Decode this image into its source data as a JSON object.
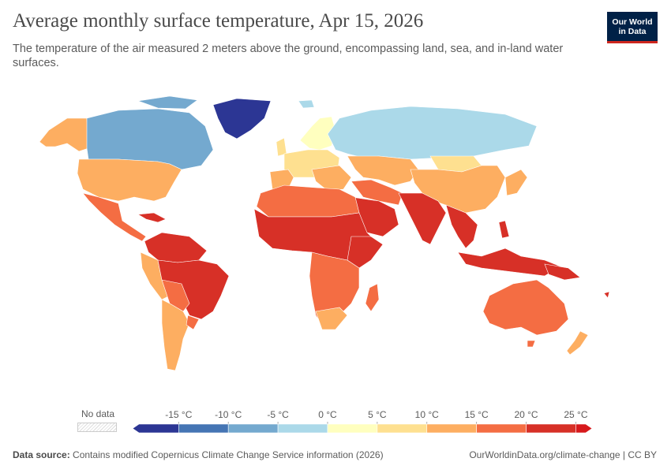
{
  "header": {
    "title": "Average monthly surface temperature, Apr 15, 2026",
    "subtitle": "The temperature of the air measured 2 meters above the ground, encompassing land, sea, and in-land water surfaces.",
    "logo_line1": "Our World",
    "logo_line2": "in Data"
  },
  "legend": {
    "no_data_label": "No data",
    "ticks": [
      "-15 °C",
      "-10 °C",
      "-5 °C",
      "0 °C",
      "5 °C",
      "10 °C",
      "15 °C",
      "20 °C",
      "25 °C"
    ],
    "colors": [
      "#2c3694",
      "#4575b4",
      "#74a9cf",
      "#abd9e9",
      "#ffffbf",
      "#fee090",
      "#fdae61",
      "#f46d43",
      "#d73027",
      "#d7191c"
    ]
  },
  "footer": {
    "source_label": "Data source:",
    "source_text": "Contains modified Copernicus Climate Change Service information (2026)",
    "url_text": "OurWorldinData.org/climate-change | CC BY"
  }
}
